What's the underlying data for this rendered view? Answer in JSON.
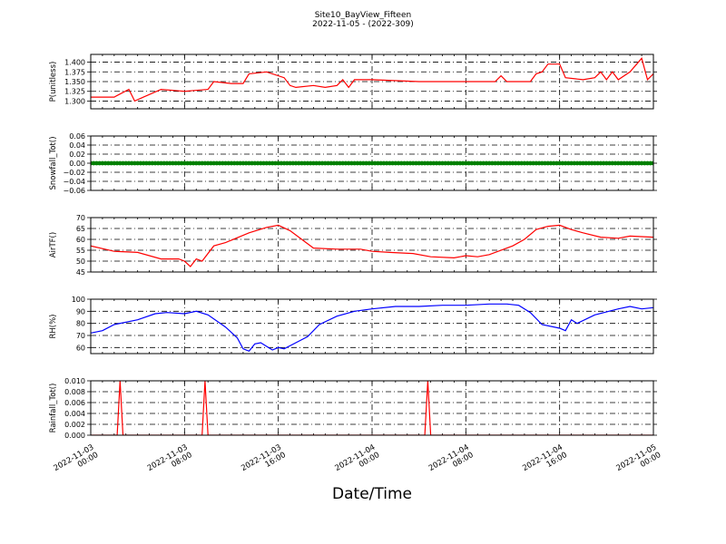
{
  "figure": {
    "title": "Site10_BayView_Fifteen",
    "subtitle": "2022-11-05 - (2022-309)",
    "xlabel": "Date/Time",
    "x_ticks": [
      [
        "2022-11-03",
        "00:00"
      ],
      [
        "2022-11-03",
        "08:00"
      ],
      [
        "2022-11-03",
        "16:00"
      ],
      [
        "2022-11-04",
        "00:00"
      ],
      [
        "2022-11-04",
        "08:00"
      ],
      [
        "2022-11-04",
        "16:00"
      ],
      [
        "2022-11-05",
        "00:00"
      ]
    ]
  },
  "chart_data": [
    {
      "type": "line",
      "ylabel": "P(unitless)",
      "color": "#ff0000",
      "xlim": [
        "2022-11-03 00:00",
        "2022-11-05 00:00"
      ],
      "ylim": [
        1.28,
        1.42
      ],
      "yticks": [
        "1.300",
        "1.325",
        "1.350",
        "1.375",
        "1.400"
      ],
      "grid": true,
      "x": [
        "2022-11-03 00:00",
        "2022-11-03 02:00",
        "2022-11-03 03:15",
        "2022-11-03 03:45",
        "2022-11-03 04:30",
        "2022-11-03 06:00",
        "2022-11-03 08:00",
        "2022-11-03 10:00",
        "2022-11-03 10:30",
        "2022-11-03 12:00",
        "2022-11-03 13:00",
        "2022-11-03 13:30",
        "2022-11-03 15:00",
        "2022-11-03 16:30",
        "2022-11-03 17:00",
        "2022-11-03 17:30",
        "2022-11-03 19:00",
        "2022-11-03 20:00",
        "2022-11-03 21:00",
        "2022-11-03 21:30",
        "2022-11-03 22:00",
        "2022-11-03 22:30",
        "2022-11-04 00:00",
        "2022-11-04 04:00",
        "2022-11-04 08:00",
        "2022-11-04 10:30",
        "2022-11-04 11:00",
        "2022-11-04 11:30",
        "2022-11-04 13:30",
        "2022-11-04 14:00",
        "2022-11-04 14:30",
        "2022-11-04 15:00",
        "2022-11-04 16:00",
        "2022-11-04 16:30",
        "2022-11-04 18:00",
        "2022-11-04 19:00",
        "2022-11-04 19:30",
        "2022-11-04 20:00",
        "2022-11-04 20:30",
        "2022-11-04 21:00",
        "2022-11-04 22:00",
        "2022-11-04 23:00",
        "2022-11-04 23:30",
        "2022-11-05 00:00"
      ],
      "values": [
        1.31,
        1.31,
        1.33,
        1.3,
        1.31,
        1.33,
        1.325,
        1.33,
        1.35,
        1.345,
        1.345,
        1.37,
        1.375,
        1.36,
        1.34,
        1.335,
        1.34,
        1.335,
        1.34,
        1.355,
        1.335,
        1.355,
        1.355,
        1.35,
        1.35,
        1.35,
        1.365,
        1.35,
        1.35,
        1.37,
        1.375,
        1.395,
        1.395,
        1.36,
        1.355,
        1.36,
        1.375,
        1.355,
        1.375,
        1.355,
        1.375,
        1.41,
        1.355,
        1.37
      ]
    },
    {
      "type": "scatter",
      "ylabel": "Snowfall_Tot()",
      "color": "#008000",
      "xlim": [
        "2022-11-03 00:00",
        "2022-11-05 00:00"
      ],
      "ylim": [
        -0.06,
        0.06
      ],
      "yticks": [
        "−0.06",
        "−0.04",
        "−0.02",
        "0.00",
        "0.02",
        "0.04",
        "0.06"
      ],
      "grid": true,
      "x_range": [
        "2022-11-03 00:00",
        "2022-11-05 00:00"
      ],
      "interval_minutes": 15,
      "value": 0.0
    },
    {
      "type": "line",
      "ylabel": "AirTF()",
      "color": "#ff0000",
      "xlim": [
        "2022-11-03 00:00",
        "2022-11-05 00:00"
      ],
      "ylim": [
        45,
        70
      ],
      "yticks": [
        "45",
        "50",
        "55",
        "60",
        "65",
        "70"
      ],
      "grid": true,
      "x": [
        "2022-11-03 00:00",
        "2022-11-03 02:00",
        "2022-11-03 04:00",
        "2022-11-03 06:00",
        "2022-11-03 07:30",
        "2022-11-03 08:00",
        "2022-11-03 08:30",
        "2022-11-03 09:00",
        "2022-11-03 09:30",
        "2022-11-03 10:30",
        "2022-11-03 11:30",
        "2022-11-03 13:30",
        "2022-11-03 15:00",
        "2022-11-03 16:00",
        "2022-11-03 17:00",
        "2022-11-03 18:00",
        "2022-11-03 19:00",
        "2022-11-03 21:00",
        "2022-11-03 23:00",
        "2022-11-04 00:00",
        "2022-11-04 01:30",
        "2022-11-04 03:30",
        "2022-11-04 05:00",
        "2022-11-04 07:00",
        "2022-11-04 08:00",
        "2022-11-04 09:00",
        "2022-11-04 10:00",
        "2022-11-04 12:00",
        "2022-11-04 13:00",
        "2022-11-04 14:00",
        "2022-11-04 15:00",
        "2022-11-04 16:00",
        "2022-11-04 17:00",
        "2022-11-04 18:00",
        "2022-11-04 19:30",
        "2022-11-04 21:00",
        "2022-11-04 22:00",
        "2022-11-05 00:00"
      ],
      "values": [
        57,
        54.5,
        54,
        51,
        51,
        50,
        47.5,
        51,
        50,
        57,
        58.5,
        63,
        65.5,
        66.5,
        64,
        60,
        56,
        55.5,
        55.5,
        54.5,
        54,
        53.5,
        52,
        51.5,
        52.5,
        52,
        53,
        57,
        60,
        64.5,
        66,
        66.5,
        64.5,
        63,
        61,
        60.5,
        61.5,
        61
      ]
    },
    {
      "type": "line",
      "ylabel": "RH(%)",
      "color": "#0000ff",
      "xlim": [
        "2022-11-03 00:00",
        "2022-11-05 00:00"
      ],
      "ylim": [
        55,
        100
      ],
      "yticks": [
        "60",
        "70",
        "80",
        "90",
        "100"
      ],
      "grid": true,
      "x": [
        "2022-11-03 00:00",
        "2022-11-03 01:00",
        "2022-11-03 02:00",
        "2022-11-03 04:00",
        "2022-11-03 05:30",
        "2022-11-03 06:30",
        "2022-11-03 08:00",
        "2022-11-03 09:00",
        "2022-11-03 10:00",
        "2022-11-03 11:30",
        "2022-11-03 12:30",
        "2022-11-03 13:00",
        "2022-11-03 13:30",
        "2022-11-03 14:00",
        "2022-11-03 14:30",
        "2022-11-03 15:30",
        "2022-11-03 16:00",
        "2022-11-03 16:30",
        "2022-11-03 17:30",
        "2022-11-03 18:30",
        "2022-11-03 19:30",
        "2022-11-03 21:00",
        "2022-11-03 22:30",
        "2022-11-04 00:00",
        "2022-11-04 02:00",
        "2022-11-04 04:00",
        "2022-11-04 06:00",
        "2022-11-04 08:00",
        "2022-11-04 10:00",
        "2022-11-04 11:30",
        "2022-11-04 12:30",
        "2022-11-04 13:30",
        "2022-11-04 14:30",
        "2022-11-04 16:00",
        "2022-11-04 16:30",
        "2022-11-04 17:00",
        "2022-11-04 17:30",
        "2022-11-04 19:00",
        "2022-11-04 21:00",
        "2022-11-04 22:00",
        "2022-11-04 23:00",
        "2022-11-05 00:00"
      ],
      "values": [
        72,
        74,
        79,
        83,
        88,
        89,
        88,
        90,
        87,
        77,
        68,
        59,
        57,
        63,
        64,
        58,
        60,
        59,
        64,
        69,
        79,
        86,
        90,
        92,
        94,
        94,
        95,
        95,
        96,
        96,
        95,
        89,
        79,
        76,
        74,
        83,
        80,
        87,
        92,
        94,
        92,
        93
      ]
    },
    {
      "type": "line",
      "ylabel": "Rainfall_Tot()",
      "color": "#ff0000",
      "xlim": [
        "2022-11-03 00:00",
        "2022-11-05 00:00"
      ],
      "ylim": [
        0,
        0.01
      ],
      "yticks": [
        "0.000",
        "0.002",
        "0.004",
        "0.006",
        "0.008",
        "0.010"
      ],
      "grid": true,
      "x": [
        "2022-11-03 00:00",
        "2022-11-03 02:15",
        "2022-11-03 02:30",
        "2022-11-03 02:45",
        "2022-11-03 09:30",
        "2022-11-03 09:45",
        "2022-11-03 10:00",
        "2022-11-04 04:30",
        "2022-11-04 04:45",
        "2022-11-04 05:00",
        "2022-11-05 00:00"
      ],
      "values": [
        0,
        0,
        0.01,
        0,
        0,
        0.01,
        0,
        0,
        0.01,
        0,
        0
      ]
    }
  ]
}
